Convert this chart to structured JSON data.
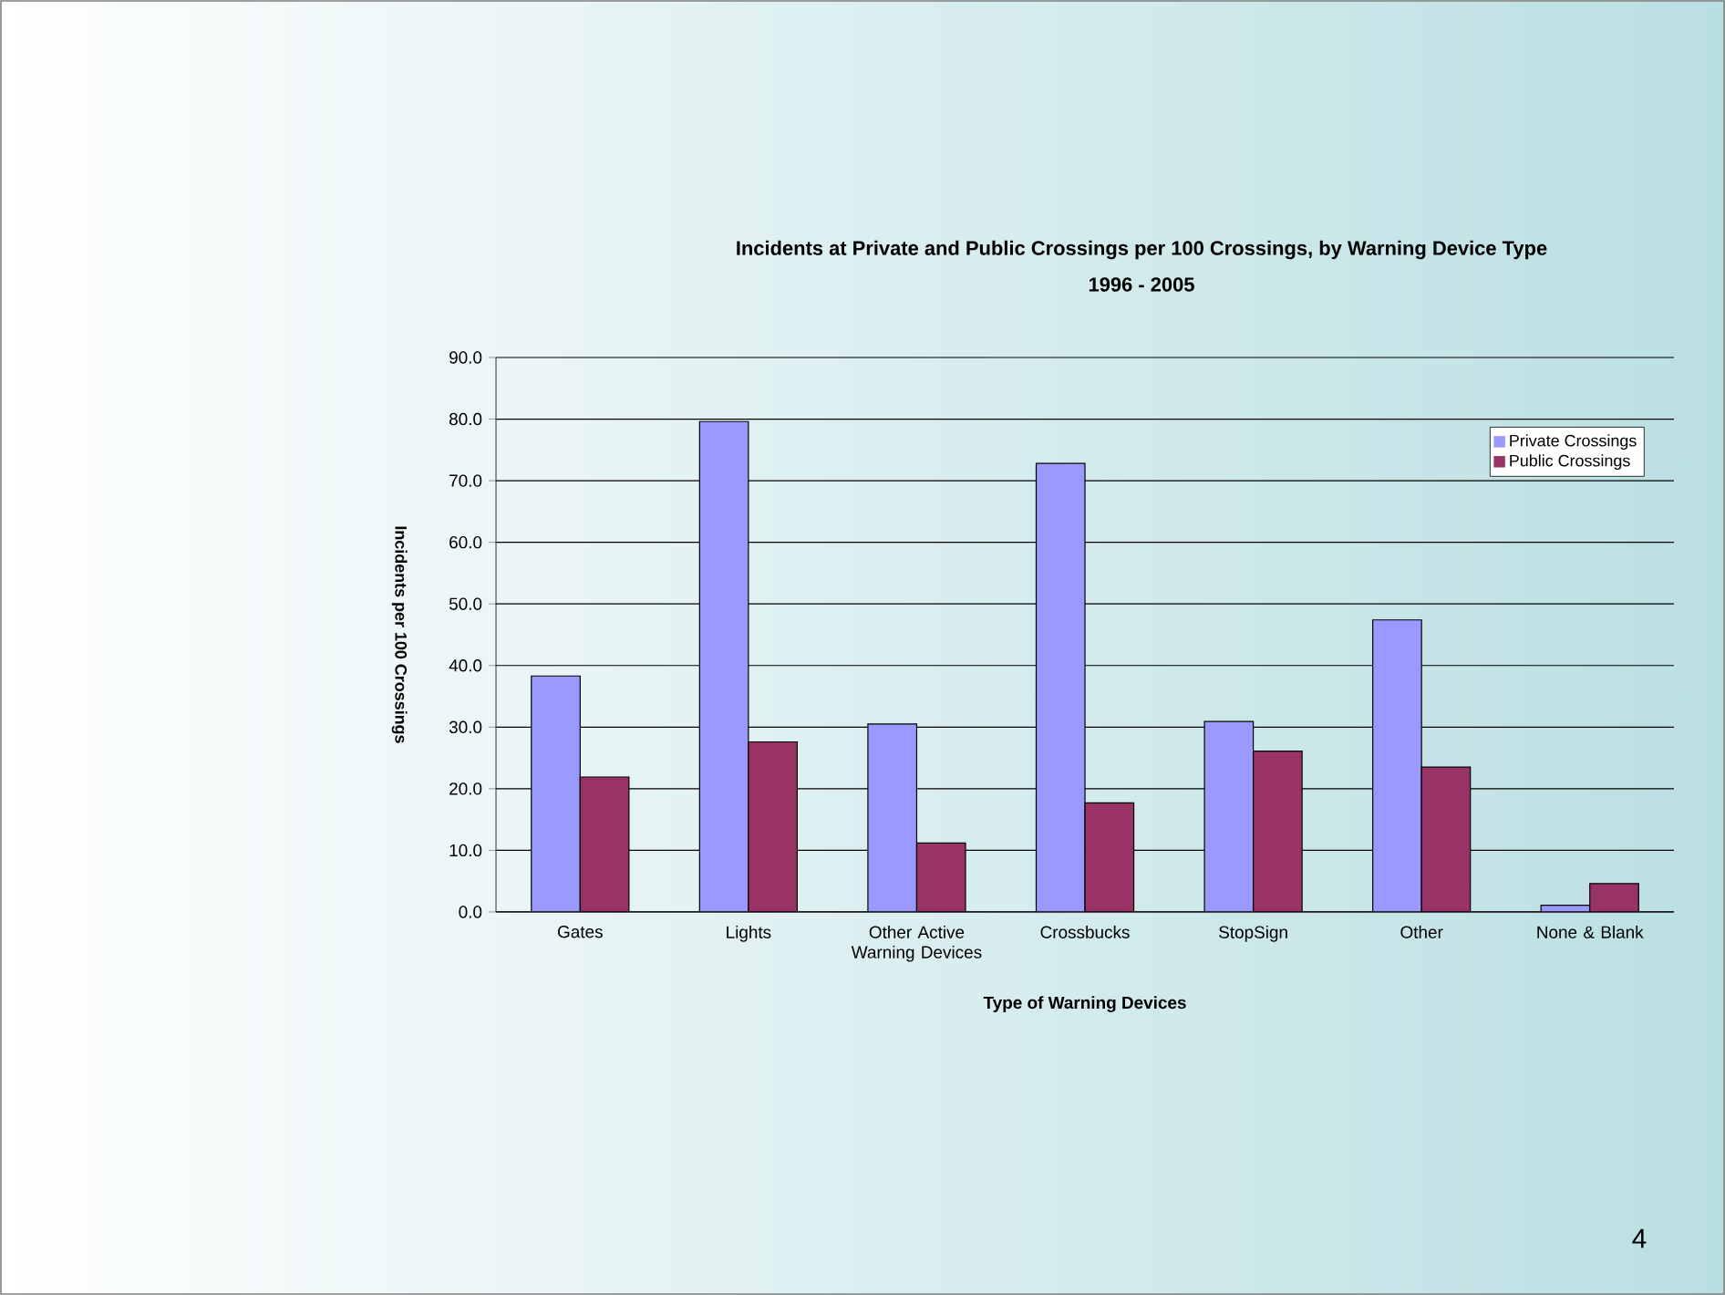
{
  "chart_data": {
    "type": "bar",
    "title": "Incidents at Private and Public Crossings per 100 Crossings, by Warning Device Type",
    "subtitle": "1996 - 2005",
    "xlabel": "Type of Warning Devices",
    "ylabel": "Incidents per 100 Crossings",
    "categories": [
      "Gates",
      "Lights",
      "Other Active Warning Devices",
      "Crossbucks",
      "StopSign",
      "Other",
      "None & Blank"
    ],
    "series": [
      {
        "name": "Private Crossings",
        "color": "#9999ff",
        "values": [
          38.3,
          79.6,
          30.5,
          72.8,
          30.9,
          47.4,
          1.1
        ]
      },
      {
        "name": "Public Crossings",
        "color": "#993366",
        "values": [
          21.9,
          27.6,
          11.2,
          17.7,
          26.1,
          23.5,
          4.6
        ]
      }
    ],
    "ylim": [
      0,
      90
    ],
    "yticks": [
      {
        "value": 0,
        "label": "0.0"
      },
      {
        "value": 10,
        "label": "10.0"
      },
      {
        "value": 20,
        "label": "20.0"
      },
      {
        "value": 30,
        "label": "30.0"
      },
      {
        "value": 40,
        "label": "40.0"
      },
      {
        "value": 50,
        "label": "50.0"
      },
      {
        "value": 60,
        "label": "60.0"
      },
      {
        "value": 70,
        "label": "70.0"
      },
      {
        "value": 80,
        "label": "80.0"
      },
      {
        "value": 90,
        "label": "90.0"
      }
    ],
    "grid": "y",
    "legend": "top right",
    "annotations": [
      "4"
    ]
  }
}
